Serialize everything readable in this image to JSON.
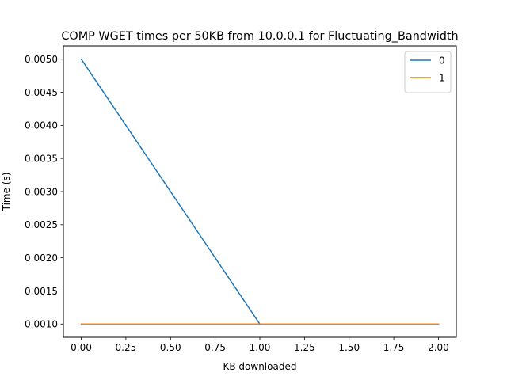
{
  "chart_data": {
    "type": "line",
    "title": "COMP WGET times per 50KB from 10.0.0.1 for Fluctuating_Bandwidth",
    "xlabel": "KB downloaded",
    "ylabel": "Time (s)",
    "xlim": [
      -0.1,
      2.1
    ],
    "ylim": [
      0.0008,
      0.0052
    ],
    "xticks": [
      "0.00",
      "0.25",
      "0.50",
      "0.75",
      "1.00",
      "1.25",
      "1.50",
      "1.75",
      "2.00"
    ],
    "yticks": [
      "0.0010",
      "0.0015",
      "0.0020",
      "0.0025",
      "0.0030",
      "0.0035",
      "0.0040",
      "0.0045",
      "0.0050"
    ],
    "grid": false,
    "legend_position": "top-right",
    "series": [
      {
        "name": "0",
        "color": "#1f77b4",
        "x": [
          0,
          1,
          2
        ],
        "y": [
          0.005,
          0.001,
          0.001
        ]
      },
      {
        "name": "1",
        "color": "#ff7f0e",
        "x": [
          0,
          1,
          2
        ],
        "y": [
          0.001,
          0.001,
          0.001
        ]
      }
    ]
  }
}
